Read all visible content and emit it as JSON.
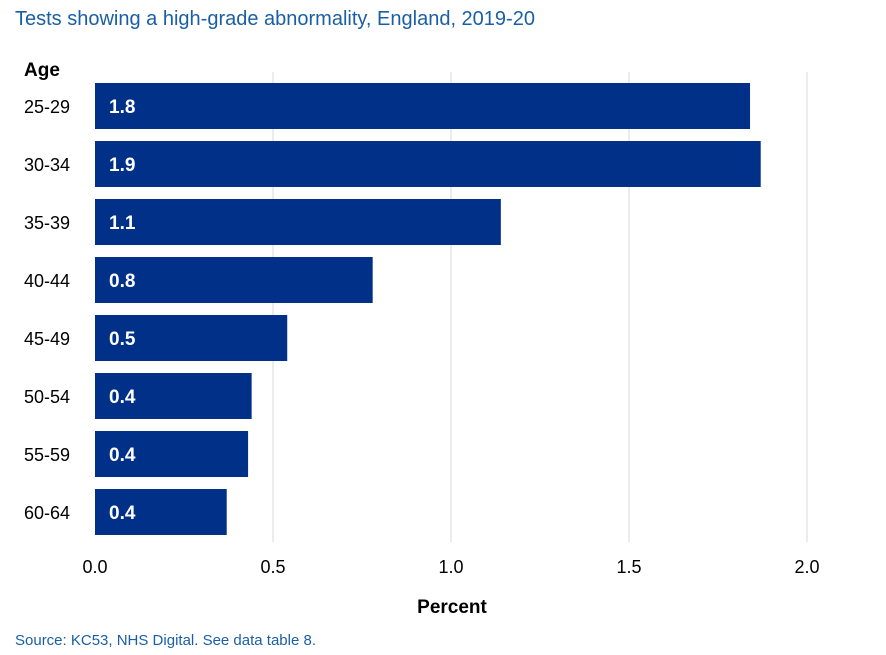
{
  "title": "Tests showing a high-grade abnormality, England, 2019-20",
  "source": "Source: KC53, NHS Digital. See data table 8.",
  "chart_data": {
    "type": "bar",
    "orientation": "horizontal",
    "ylabel": "Age",
    "xlabel": "Percent",
    "categories": [
      "25-29",
      "30-34",
      "35-39",
      "40-44",
      "45-49",
      "50-54",
      "55-59",
      "60-64"
    ],
    "values": [
      1.84,
      1.87,
      1.14,
      0.78,
      0.54,
      0.44,
      0.43,
      0.37
    ],
    "data_labels": [
      "1.8",
      "1.9",
      "1.1",
      "0.8",
      "0.5",
      "0.4",
      "0.4",
      "0.4"
    ],
    "xlim": [
      0,
      2.0
    ],
    "xticks": [
      "0.0",
      "0.5",
      "1.0",
      "1.5",
      "2.0"
    ],
    "xtick_values": [
      0,
      0.5,
      1.0,
      1.5,
      2.0
    ],
    "grid": "vertical",
    "bar_color": "#003087",
    "grid_color": "#d9d9d9"
  }
}
